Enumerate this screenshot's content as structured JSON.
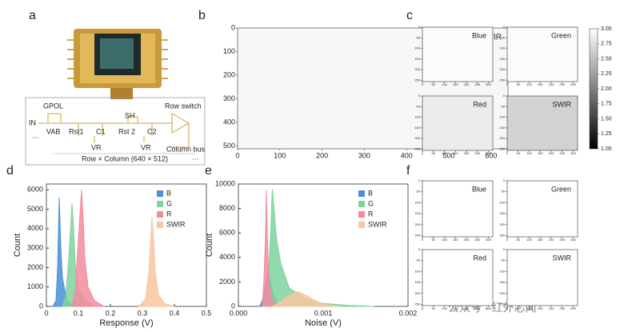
{
  "panel_labels": [
    "a",
    "b",
    "c",
    "d",
    "e",
    "f"
  ],
  "diagram": {
    "labels": [
      "GPOL",
      "IN",
      "VAB",
      "Rst1",
      "C1",
      "VR",
      "SH",
      "Rst 2",
      "C2",
      "VR",
      "Row switch",
      "Column bus",
      "Row × Column (640 × 512)",
      "···",
      "···"
    ]
  },
  "watermark": "公众号 · 红外芯闻",
  "chart_data": [
    {
      "type": "image",
      "title": "RGB-SWIR",
      "shade": "#f7f7f7",
      "xlim": [
        0,
        640
      ],
      "xticks": [
        0,
        100,
        200,
        300,
        400,
        500,
        600
      ],
      "ylim": [
        0,
        512
      ],
      "yticks": [
        0,
        100,
        200,
        300,
        400,
        500
      ],
      "y_inverted": true
    },
    {
      "type": "image_grid",
      "panels": [
        {
          "title": "Blue",
          "shade": "#fbfbfb"
        },
        {
          "title": "Green",
          "shade": "#fbfbfb"
        },
        {
          "title": "Red",
          "shade": "#ececec"
        },
        {
          "title": "SWIR",
          "shade": "#d2d2d2"
        }
      ],
      "xlim": [
        0,
        320
      ],
      "xticks": [
        0,
        50,
        100,
        150,
        200,
        250,
        300
      ],
      "ylim": [
        0,
        256
      ],
      "yticks": [
        0,
        50,
        100,
        150,
        200,
        250
      ],
      "y_inverted": true,
      "colorbar": {
        "ylim": [
          1,
          3
        ],
        "colors": [
          "#000000",
          "#ffffff"
        ],
        "yticks": [
          {
            "value": 1,
            "label": "1.00"
          },
          {
            "value": 1.25,
            "label": "1.25"
          },
          {
            "value": 1.5,
            "label": "1.50"
          },
          {
            "value": 1.75,
            "label": "1.75"
          },
          {
            "value": 2,
            "label": "2.00"
          },
          {
            "value": 2.25,
            "label": "2.25"
          },
          {
            "value": 2.5,
            "label": "2.50"
          },
          {
            "value": 2.75,
            "label": "2.75"
          },
          {
            "value": 3,
            "label": "3.00"
          }
        ]
      }
    },
    {
      "type": "histogram",
      "x_label": "Response (V)",
      "y_label": "Count",
      "xlim": [
        0,
        0.5
      ],
      "xticks": [
        0,
        0.1,
        0.2,
        0.3,
        0.4,
        0.5
      ],
      "ylim": [
        0,
        6300
      ],
      "yticks": [
        0,
        1000,
        2000,
        3000,
        4000,
        5000,
        6000
      ],
      "series": [
        {
          "name": "B",
          "color": "#4a8fd8",
          "x": [
            0.02,
            0.03,
            0.035,
            0.04,
            0.045,
            0.05,
            0.06,
            0.07,
            0.09
          ],
          "values": [
            0,
            300,
            2000,
            5600,
            3000,
            1500,
            600,
            200,
            0
          ]
        },
        {
          "name": "G",
          "color": "#7fd3a0",
          "x": [
            0.05,
            0.06,
            0.07,
            0.08,
            0.085,
            0.09,
            0.1,
            0.12,
            0.15
          ],
          "values": [
            0,
            500,
            2500,
            5300,
            4000,
            2200,
            900,
            300,
            0
          ]
        },
        {
          "name": "R",
          "color": "#f28c9c",
          "x": [
            0.08,
            0.09,
            0.1,
            0.11,
            0.115,
            0.12,
            0.13,
            0.15,
            0.18
          ],
          "values": [
            0,
            800,
            3500,
            6000,
            4500,
            2500,
            1000,
            300,
            0
          ]
        },
        {
          "name": "SWIR",
          "color": "#f8c6a0",
          "x": [
            0.29,
            0.31,
            0.32,
            0.33,
            0.335,
            0.34,
            0.35,
            0.37,
            0.4
          ],
          "values": [
            0,
            400,
            1800,
            4600,
            3500,
            1800,
            600,
            150,
            0
          ]
        }
      ]
    },
    {
      "type": "histogram",
      "x_label": "Noise (V)",
      "y_label": "Count",
      "xlim": [
        0,
        0.002
      ],
      "xticks": [
        {
          "value": 0,
          "label": "0.000"
        },
        {
          "value": 0.001,
          "label": "0.001"
        },
        {
          "value": 0.002,
          "label": "0.002"
        }
      ],
      "ylim": [
        0,
        10000
      ],
      "yticks": [
        0,
        2000,
        4000,
        6000,
        8000,
        10000
      ],
      "series": [
        {
          "name": "B",
          "color": "#4a8fd8",
          "x": [
            0.00025,
            0.0003,
            0.00033,
            0.00035,
            0.00038,
            0.0004,
            0.00045,
            0.0005
          ],
          "values": [
            0,
            800,
            2000,
            3000,
            2000,
            1200,
            400,
            0
          ]
        },
        {
          "name": "G",
          "color": "#7fd3a0",
          "x": [
            0.0003,
            0.00035,
            0.00038,
            0.0004,
            0.00042,
            0.00045,
            0.0005,
            0.0006,
            0.0008,
            0.001,
            0.0013,
            0.0016
          ],
          "values": [
            0,
            2000,
            6000,
            9600,
            8000,
            5500,
            3500,
            1500,
            600,
            250,
            80,
            0
          ]
        },
        {
          "name": "R",
          "color": "#f28c9c",
          "x": [
            0.00028,
            0.0003,
            0.00032,
            0.00033,
            0.00034,
            0.00036,
            0.0004,
            0.00045
          ],
          "values": [
            0,
            2000,
            6000,
            9500,
            6000,
            2000,
            500,
            0
          ]
        },
        {
          "name": "SWIR",
          "color": "#f8c6a0",
          "x": [
            0.0004,
            0.0005,
            0.0006,
            0.0007,
            0.0008,
            0.0009,
            0.001,
            0.0012
          ],
          "values": [
            0,
            400,
            900,
            1200,
            900,
            500,
            200,
            0
          ]
        }
      ]
    },
    {
      "type": "image_grid",
      "panels": [
        {
          "title": "Blue",
          "shade": "#ffffff"
        },
        {
          "title": "Green",
          "shade": "#ffffff"
        },
        {
          "title": "Red",
          "shade": "#ffffff"
        },
        {
          "title": "SWIR",
          "shade": "#ffffff"
        }
      ],
      "xlim": [
        0,
        320
      ],
      "xticks": [
        0,
        50,
        100,
        150,
        200,
        250,
        300
      ],
      "ylim": [
        0,
        256
      ],
      "yticks": [
        0,
        50,
        100,
        150,
        200,
        250
      ],
      "y_inverted": true
    }
  ]
}
